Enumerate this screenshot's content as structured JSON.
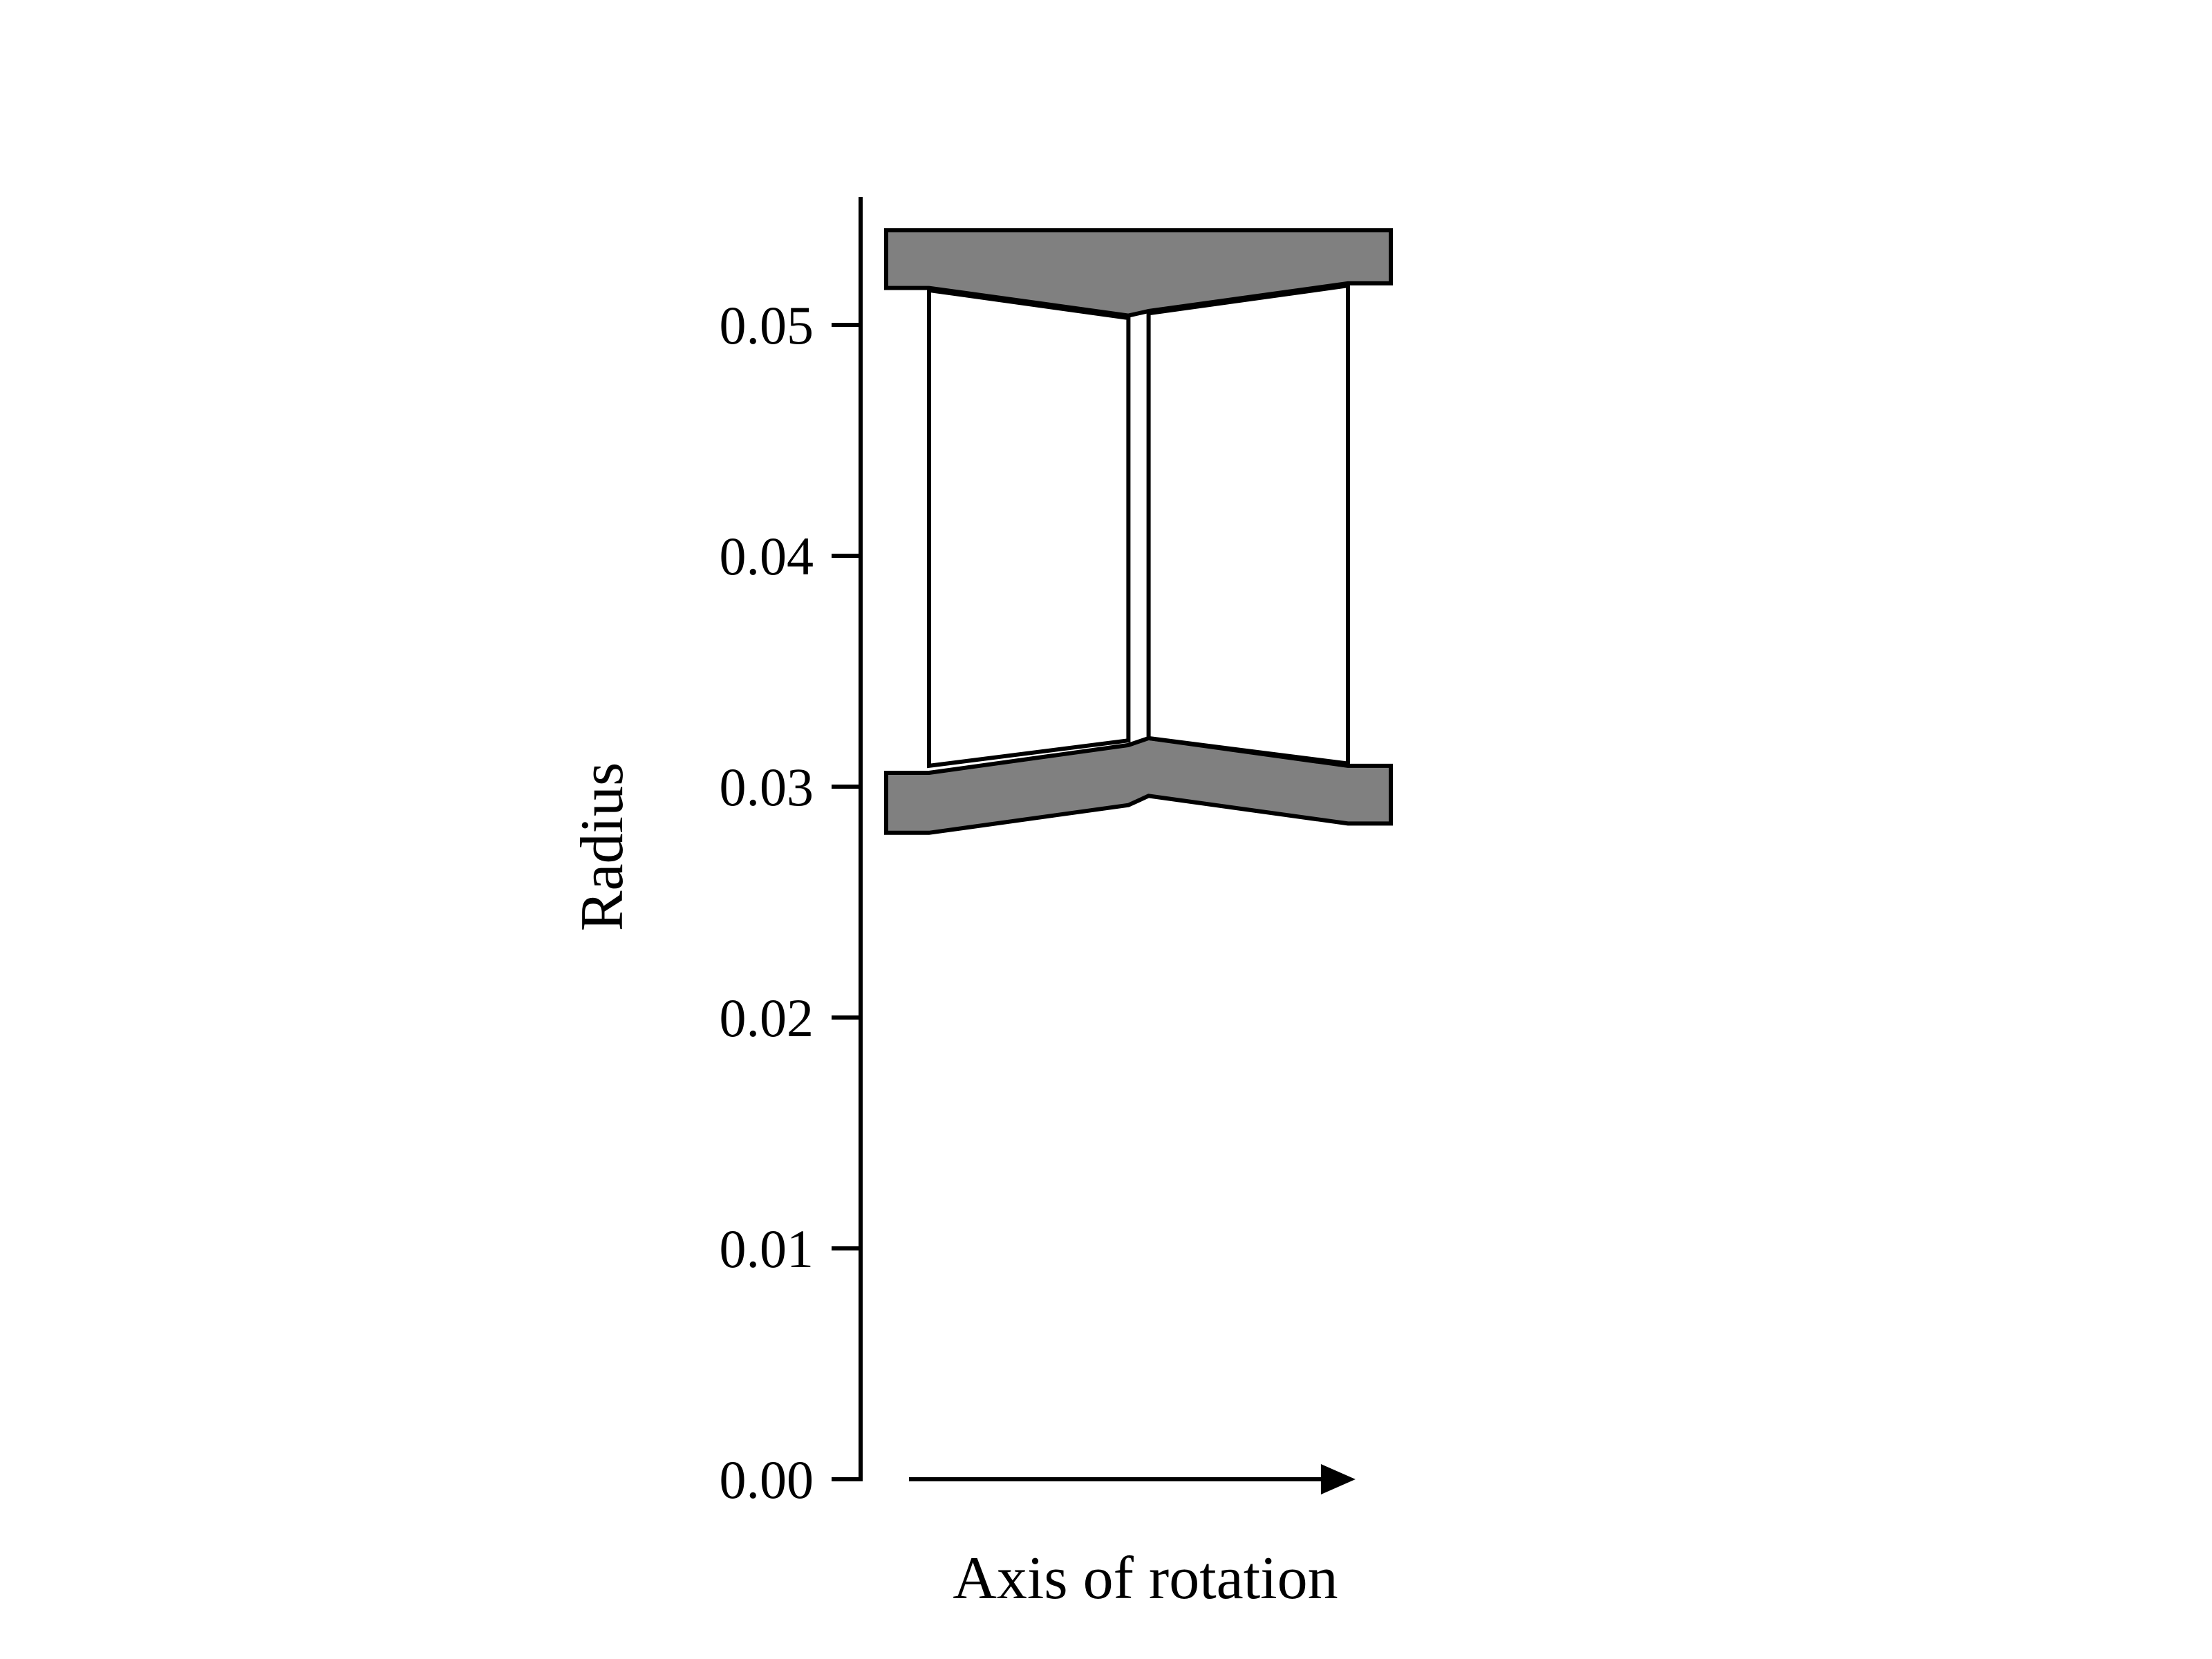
{
  "chart_data": {
    "type": "diagram",
    "title": "",
    "ylabel": "Radius",
    "xlabel": "Axis of rotation",
    "ylim": [
      0.0,
      0.055
    ],
    "yticks": [
      0.0,
      0.01,
      0.02,
      0.03,
      0.04,
      0.05
    ],
    "ytick_labels": [
      "0.00",
      "0.01",
      "0.02",
      "0.03",
      "0.04",
      "0.05"
    ],
    "axial_span": [
      0.0,
      1.0
    ],
    "components": [
      {
        "name": "casing",
        "fill": "#808080",
        "outline": [
          [
            0.0,
            0.0541
          ],
          [
            1.0,
            0.0541
          ],
          [
            1.0,
            0.0518
          ],
          [
            0.915,
            0.0518
          ],
          [
            0.52,
            0.0506
          ],
          [
            0.48,
            0.0504
          ],
          [
            0.085,
            0.0516
          ],
          [
            0.0,
            0.0516
          ]
        ]
      },
      {
        "name": "hub",
        "fill": "#808080",
        "outline": [
          [
            0.0,
            0.0306
          ],
          [
            0.085,
            0.0306
          ],
          [
            0.48,
            0.0318
          ],
          [
            0.52,
            0.0321
          ],
          [
            0.915,
            0.0309
          ],
          [
            1.0,
            0.0309
          ],
          [
            1.0,
            0.0284
          ],
          [
            0.915,
            0.0284
          ],
          [
            0.52,
            0.0296
          ],
          [
            0.48,
            0.0292
          ],
          [
            0.085,
            0.028
          ],
          [
            0.0,
            0.028
          ]
        ]
      },
      {
        "name": "blade-row-1",
        "fill": "#ffffff",
        "outline": [
          [
            0.085,
            0.0515
          ],
          [
            0.48,
            0.0503
          ],
          [
            0.48,
            0.032
          ],
          [
            0.085,
            0.0309
          ]
        ]
      },
      {
        "name": "blade-row-2",
        "fill": "#ffffff",
        "outline": [
          [
            0.52,
            0.0505
          ],
          [
            0.915,
            0.0517
          ],
          [
            0.915,
            0.031
          ],
          [
            0.52,
            0.0321
          ]
        ]
      }
    ],
    "rotation_arrow": {
      "from": 0.1,
      "to": 0.93,
      "y": 0.0
    },
    "colors": {
      "line": "#000000",
      "component_fill": "#808080",
      "blade_fill": "#ffffff",
      "background": "#ffffff"
    }
  }
}
